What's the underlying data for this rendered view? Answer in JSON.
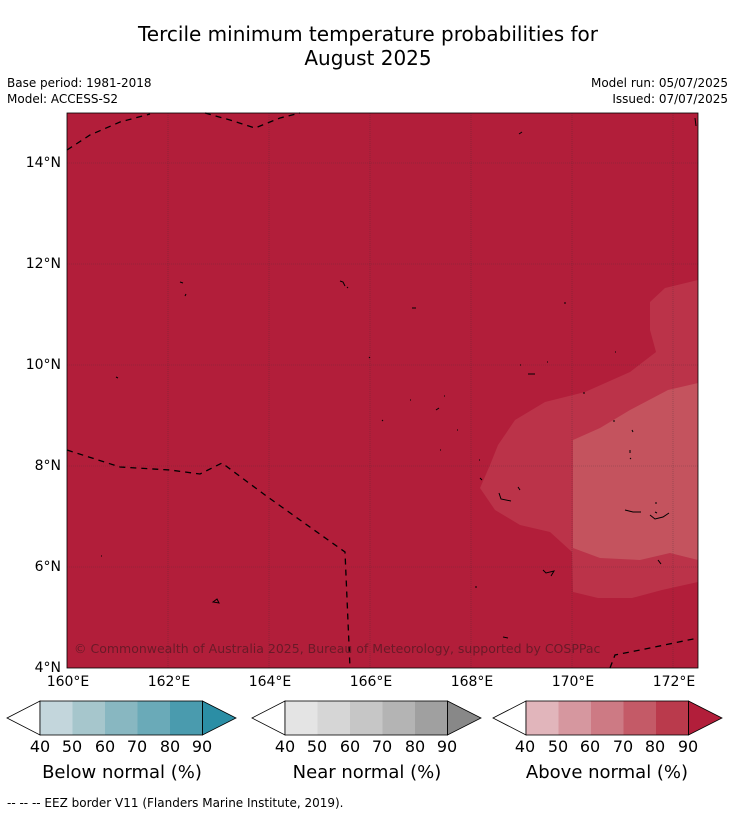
{
  "header": {
    "title_line1": "Tercile minimum temperature probabilities for",
    "title_line2": "August 2025",
    "base_period": "Base period: 1981-2018",
    "model": "Model: ACCESS-S2",
    "model_run": "Model run: 05/07/2025",
    "issued": "Issued: 07/07/2025"
  },
  "map": {
    "lat_labels": [
      "14°N",
      "12°N",
      "10°N",
      "8°N",
      "6°N",
      "4°N"
    ],
    "lon_labels": [
      "160°E",
      "162°E",
      "164°E",
      "166°E",
      "168°E",
      "170°E",
      "172°E"
    ],
    "copyright": "© Commonwealth of Australia 2025, Bureau of Meteorology, supported by COSPPac",
    "colors": {
      "above_90": "#b21e3a",
      "above_80": "#bb3349",
      "above_70": "#c4535e",
      "coast": "#000000"
    }
  },
  "colorbars": [
    {
      "title": "Below normal (%)",
      "ticks": [
        "40",
        "50",
        "60",
        "70",
        "80",
        "90"
      ],
      "colors": [
        "#ffffff",
        "#c3d6dc",
        "#a6c6cc",
        "#88b7c1",
        "#6aaab8",
        "#4a9bae",
        "#2b8ea5"
      ]
    },
    {
      "title": "Near normal (%)",
      "ticks": [
        "40",
        "50",
        "60",
        "70",
        "80",
        "90"
      ],
      "colors": [
        "#ffffff",
        "#e4e4e4",
        "#d6d6d6",
        "#c6c6c6",
        "#b4b4b4",
        "#a0a0a0",
        "#888888"
      ]
    },
    {
      "title": "Above normal (%)",
      "ticks": [
        "40",
        "50",
        "60",
        "70",
        "80",
        "90"
      ],
      "colors": [
        "#ffffff",
        "#e1b5bb",
        "#d6979f",
        "#cd7a84",
        "#c45a67",
        "#ba3a4c",
        "#b21e3a"
      ]
    }
  ],
  "footer": {
    "legend_text": "--  --  -- EEZ border V11 (Flanders Marine Institute, 2019)."
  }
}
